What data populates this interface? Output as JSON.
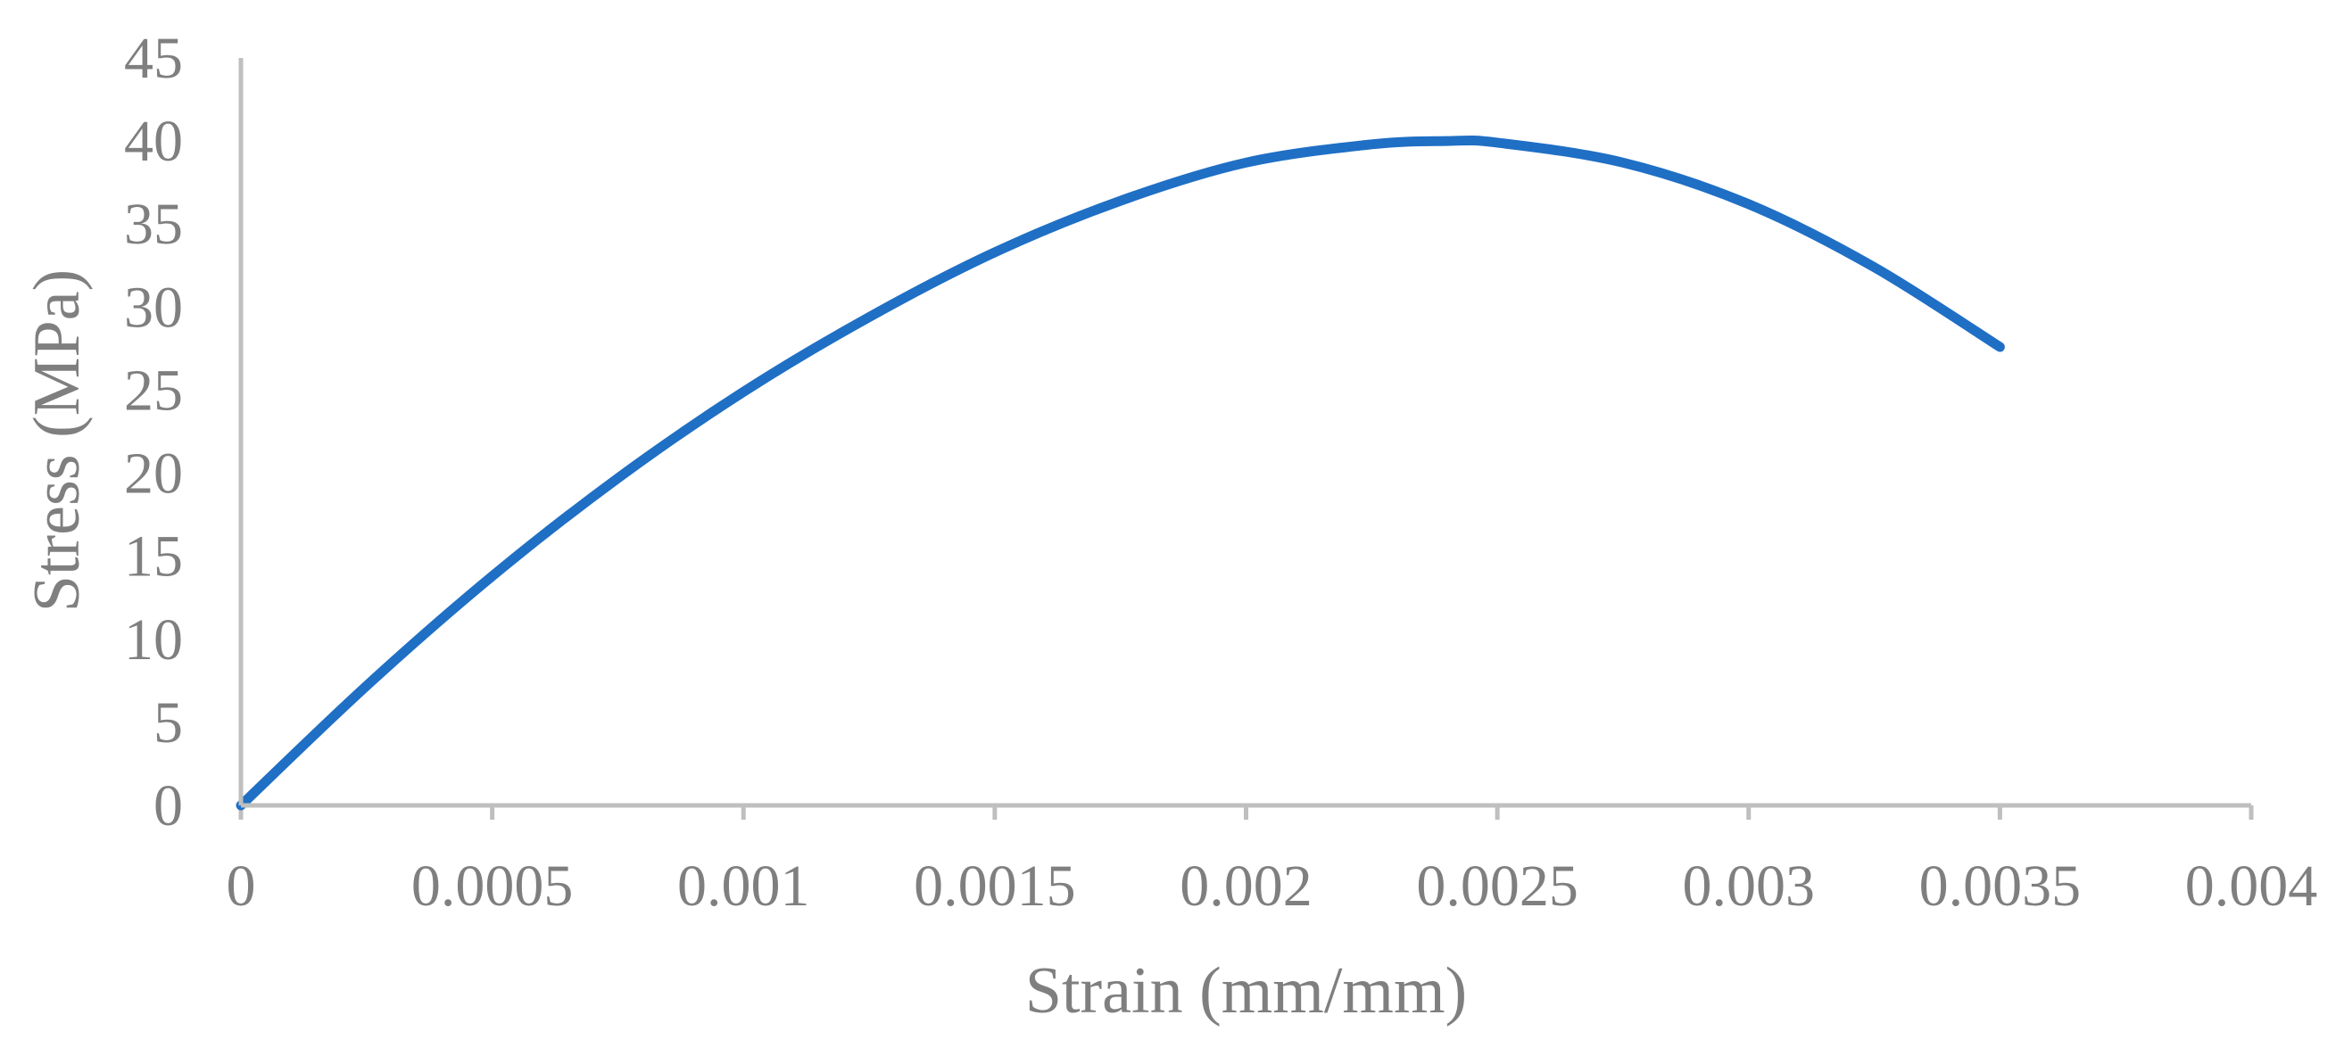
{
  "chart_data": {
    "type": "line",
    "title": "",
    "xlabel": "Strain (mm/mm)",
    "ylabel": "Stress (MPa)",
    "xlim": [
      0,
      0.004
    ],
    "ylim": [
      0,
      45
    ],
    "x_ticks": [
      0,
      0.0005,
      0.001,
      0.0015,
      0.002,
      0.0025,
      0.003,
      0.0035,
      0.004
    ],
    "x_tick_labels": [
      "0",
      "0.0005",
      "0.001",
      "0.0015",
      "0.002",
      "0.0025",
      "0.003",
      "0.0035",
      "0.004"
    ],
    "y_ticks": [
      0,
      5,
      10,
      15,
      20,
      25,
      30,
      35,
      40,
      45
    ],
    "y_tick_labels": [
      "0",
      "5",
      "10",
      "15",
      "20",
      "25",
      "30",
      "35",
      "40",
      "45"
    ],
    "grid": false,
    "legend": "none",
    "series": [
      {
        "color": "#1f6fc5",
        "x": [
          0,
          0.00025,
          0.0005,
          0.00075,
          0.001,
          0.00125,
          0.0015,
          0.00175,
          0.002,
          0.00225,
          0.0024,
          0.0025,
          0.00275,
          0.003,
          0.00325,
          0.0035
        ],
        "y": [
          0,
          7.2,
          13.8,
          19.7,
          24.9,
          29.4,
          33.3,
          36.4,
          38.7,
          39.8,
          40.0,
          39.9,
          38.7,
          36.2,
          32.4,
          27.6
        ]
      }
    ]
  }
}
